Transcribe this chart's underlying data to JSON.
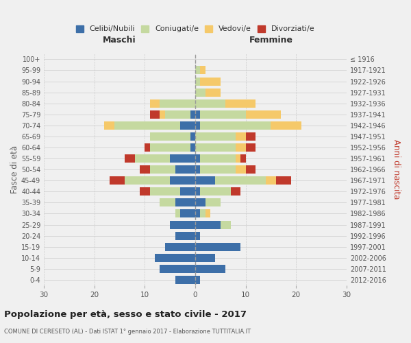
{
  "age_groups": [
    "0-4",
    "5-9",
    "10-14",
    "15-19",
    "20-24",
    "25-29",
    "30-34",
    "35-39",
    "40-44",
    "45-49",
    "50-54",
    "55-59",
    "60-64",
    "65-69",
    "70-74",
    "75-79",
    "80-84",
    "85-89",
    "90-94",
    "95-99",
    "100+"
  ],
  "birth_years": [
    "2012-2016",
    "2007-2011",
    "2002-2006",
    "1997-2001",
    "1992-1996",
    "1987-1991",
    "1982-1986",
    "1977-1981",
    "1972-1976",
    "1967-1971",
    "1962-1966",
    "1957-1961",
    "1952-1956",
    "1947-1951",
    "1942-1946",
    "1937-1941",
    "1932-1936",
    "1927-1931",
    "1922-1926",
    "1917-1921",
    "≤ 1916"
  ],
  "males": {
    "celibe": [
      4,
      7,
      8,
      6,
      4,
      5,
      3,
      4,
      3,
      5,
      4,
      5,
      1,
      1,
      3,
      1,
      0,
      0,
      0,
      0,
      0
    ],
    "coniugato": [
      0,
      0,
      0,
      0,
      0,
      0,
      1,
      3,
      6,
      9,
      5,
      7,
      8,
      8,
      13,
      5,
      7,
      0,
      0,
      0,
      0
    ],
    "vedovo": [
      0,
      0,
      0,
      0,
      0,
      0,
      0,
      0,
      0,
      0,
      0,
      0,
      0,
      0,
      2,
      1,
      2,
      0,
      0,
      0,
      0
    ],
    "divorziato": [
      0,
      0,
      0,
      0,
      0,
      0,
      0,
      0,
      2,
      3,
      2,
      2,
      1,
      0,
      0,
      2,
      0,
      0,
      0,
      0,
      0
    ]
  },
  "females": {
    "nubile": [
      1,
      6,
      4,
      9,
      1,
      5,
      1,
      2,
      1,
      4,
      1,
      1,
      0,
      0,
      1,
      1,
      0,
      0,
      0,
      0,
      0
    ],
    "coniugata": [
      0,
      0,
      0,
      0,
      0,
      2,
      1,
      3,
      6,
      10,
      7,
      7,
      8,
      8,
      14,
      9,
      6,
      2,
      1,
      1,
      0
    ],
    "vedova": [
      0,
      0,
      0,
      0,
      0,
      0,
      1,
      0,
      0,
      2,
      2,
      1,
      2,
      2,
      6,
      7,
      6,
      3,
      4,
      1,
      0
    ],
    "divorziata": [
      0,
      0,
      0,
      0,
      0,
      0,
      0,
      0,
      2,
      3,
      2,
      1,
      2,
      2,
      0,
      0,
      0,
      0,
      0,
      0,
      0
    ]
  },
  "colors": {
    "celibe": "#3d6fa8",
    "coniugato": "#c5d9a0",
    "vedovo": "#f5c96a",
    "divorziato": "#c0392b"
  },
  "title": "Popolazione per età, sesso e stato civile - 2017",
  "subtitle": "COMUNE DI CERESETO (AL) - Dati ISTAT 1° gennaio 2017 - Elaborazione TUTTITALIA.IT",
  "xlabel_left": "Maschi",
  "xlabel_right": "Femmine",
  "ylabel_left": "Fasce di età",
  "ylabel_right": "Anni di nascita",
  "xlim": 30,
  "background_color": "#f0f0f0",
  "legend_labels": [
    "Celibi/Nubili",
    "Coniugati/e",
    "Vedovi/e",
    "Divorziati/e"
  ]
}
